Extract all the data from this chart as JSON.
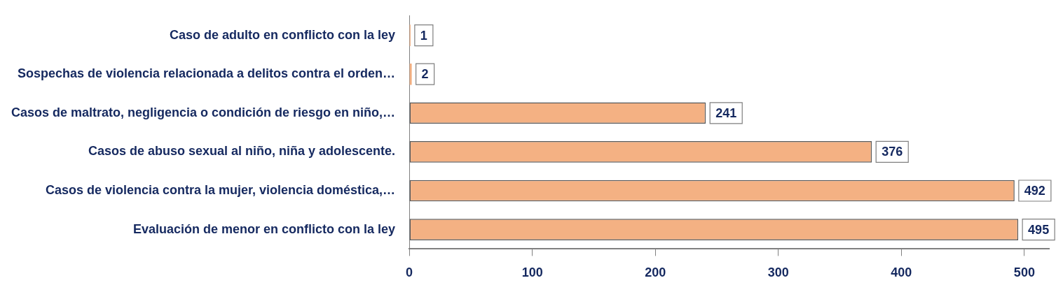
{
  "chart_data": {
    "type": "bar",
    "orientation": "horizontal",
    "categories": [
      "Caso de adulto en conflicto con la ley",
      "Sospechas de violencia relacionada a delitos contra el orden…",
      "Casos de maltrato, negligencia o condición de riesgo en niño,…",
      "Casos de abuso sexual al niño, niña y adolescente.",
      "Casos de violencia contra la mujer, violencia doméstica,…",
      "Evaluación de menor en conflicto con la ley"
    ],
    "values": [
      1,
      2,
      241,
      376,
      492,
      495
    ],
    "color": "#f4b183",
    "xlim": [
      0,
      520
    ],
    "xticks": [
      0,
      100,
      200,
      300,
      400,
      500
    ],
    "data_labels": true
  }
}
